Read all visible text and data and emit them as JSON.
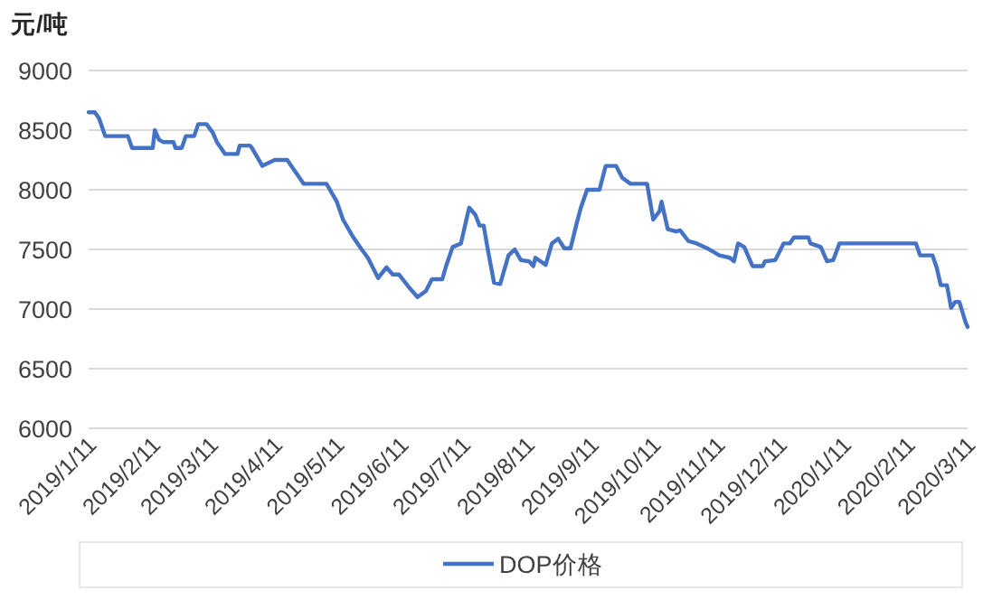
{
  "chart_data": {
    "type": "line",
    "ylabel": "元/吨",
    "x": [
      "2019-01-11",
      "2019-01-14",
      "2019-01-16",
      "2019-01-19",
      "2019-01-30",
      "2019-02-01",
      "2019-02-11",
      "2019-02-12",
      "2019-02-14",
      "2019-02-16",
      "2019-02-21",
      "2019-02-22",
      "2019-02-25",
      "2019-02-27",
      "2019-03-03",
      "2019-03-05",
      "2019-03-09",
      "2019-03-12",
      "2019-03-14",
      "2019-03-18",
      "2019-03-24",
      "2019-03-25",
      "2019-03-30",
      "2019-03-31",
      "2019-04-05",
      "2019-04-11",
      "2019-04-17",
      "2019-04-21",
      "2019-04-25",
      "2019-05-06",
      "2019-05-11",
      "2019-05-14",
      "2019-05-19",
      "2019-05-23",
      "2019-05-26",
      "2019-05-31",
      "2019-06-04",
      "2019-06-07",
      "2019-06-10",
      "2019-06-15",
      "2019-06-19",
      "2019-06-23",
      "2019-06-26",
      "2019-07-01",
      "2019-07-03",
      "2019-07-06",
      "2019-07-10",
      "2019-07-12",
      "2019-07-14",
      "2019-07-17",
      "2019-07-19",
      "2019-07-21",
      "2019-07-23",
      "2019-07-26",
      "2019-07-29",
      "2019-08-02",
      "2019-08-05",
      "2019-08-08",
      "2019-08-12",
      "2019-08-14",
      "2019-08-15",
      "2019-08-20",
      "2019-08-23",
      "2019-08-26",
      "2019-08-29",
      "2019-09-01",
      "2019-09-04",
      "2019-09-06",
      "2019-09-09",
      "2019-09-15",
      "2019-09-18",
      "2019-09-23",
      "2019-09-26",
      "2019-09-30",
      "2019-10-08",
      "2019-10-11",
      "2019-10-14",
      "2019-10-15",
      "2019-10-18",
      "2019-10-22",
      "2019-10-24",
      "2019-10-28",
      "2019-11-01",
      "2019-11-06",
      "2019-11-12",
      "2019-11-17",
      "2019-11-19",
      "2019-11-21",
      "2019-11-24",
      "2019-11-28",
      "2019-12-03",
      "2019-12-04",
      "2019-12-09",
      "2019-12-13",
      "2019-12-16",
      "2019-12-18",
      "2019-12-25",
      "2019-12-26",
      "2019-12-31",
      "2020-01-03",
      "2020-01-06",
      "2020-01-09",
      "2020-01-14",
      "2020-02-15",
      "2020-02-17",
      "2020-02-23",
      "2020-02-25",
      "2020-02-27",
      "2020-03-01",
      "2020-03-03",
      "2020-03-05",
      "2020-03-07",
      "2020-03-10",
      "2020-03-11"
    ],
    "series": [
      {
        "name": "DOP价格",
        "color": "#4472c4",
        "values": [
          8650,
          8650,
          8600,
          8450,
          8450,
          8350,
          8350,
          8500,
          8420,
          8400,
          8400,
          8350,
          8350,
          8450,
          8450,
          8550,
          8550,
          8480,
          8400,
          8300,
          8300,
          8370,
          8370,
          8350,
          8200,
          8250,
          8250,
          8150,
          8050,
          8050,
          7900,
          7750,
          7600,
          7500,
          7430,
          7260,
          7350,
          7290,
          7290,
          7180,
          7100,
          7150,
          7250,
          7250,
          7370,
          7520,
          7550,
          7700,
          7850,
          7790,
          7700,
          7700,
          7500,
          7220,
          7210,
          7450,
          7500,
          7410,
          7400,
          7360,
          7430,
          7370,
          7550,
          7590,
          7510,
          7510,
          7720,
          7850,
          8000,
          8000,
          8200,
          8200,
          8100,
          8050,
          8050,
          7750,
          7820,
          7900,
          7670,
          7650,
          7660,
          7570,
          7550,
          7510,
          7450,
          7430,
          7400,
          7550,
          7520,
          7360,
          7360,
          7400,
          7410,
          7550,
          7550,
          7600,
          7600,
          7550,
          7520,
          7400,
          7410,
          7550,
          7550,
          7550,
          7450,
          7450,
          7350,
          7200,
          7200,
          7010,
          7060,
          7060,
          6890,
          6850
        ]
      }
    ],
    "xlim": [
      "2019-01-11",
      "2020-03-11"
    ],
    "xticks": [
      {
        "value": "2019-01-11",
        "label": "2019/1/11"
      },
      {
        "value": "2019-02-11",
        "label": "2019/2/11"
      },
      {
        "value": "2019-03-11",
        "label": "2019/3/11"
      },
      {
        "value": "2019-04-11",
        "label": "2019/4/11"
      },
      {
        "value": "2019-05-11",
        "label": "2019/5/11"
      },
      {
        "value": "2019-06-11",
        "label": "2019/6/11"
      },
      {
        "value": "2019-07-11",
        "label": "2019/7/11"
      },
      {
        "value": "2019-08-11",
        "label": "2019/8/11"
      },
      {
        "value": "2019-09-11",
        "label": "2019/9/11"
      },
      {
        "value": "2019-10-11",
        "label": "2019/10/11"
      },
      {
        "value": "2019-11-11",
        "label": "2019/11/11"
      },
      {
        "value": "2019-12-11",
        "label": "2019/12/11"
      },
      {
        "value": "2020-01-11",
        "label": "2020/1/11"
      },
      {
        "value": "2020-02-11",
        "label": "2020/2/11"
      },
      {
        "value": "2020-03-11",
        "label": "2020/3/11"
      }
    ],
    "ylim": [
      6000,
      9000
    ],
    "yticks": [
      6000,
      6500,
      7000,
      7500,
      8000,
      8500,
      9000
    ],
    "grid": "y",
    "legend": "bottom",
    "marker": "none",
    "line_style": "solid"
  }
}
